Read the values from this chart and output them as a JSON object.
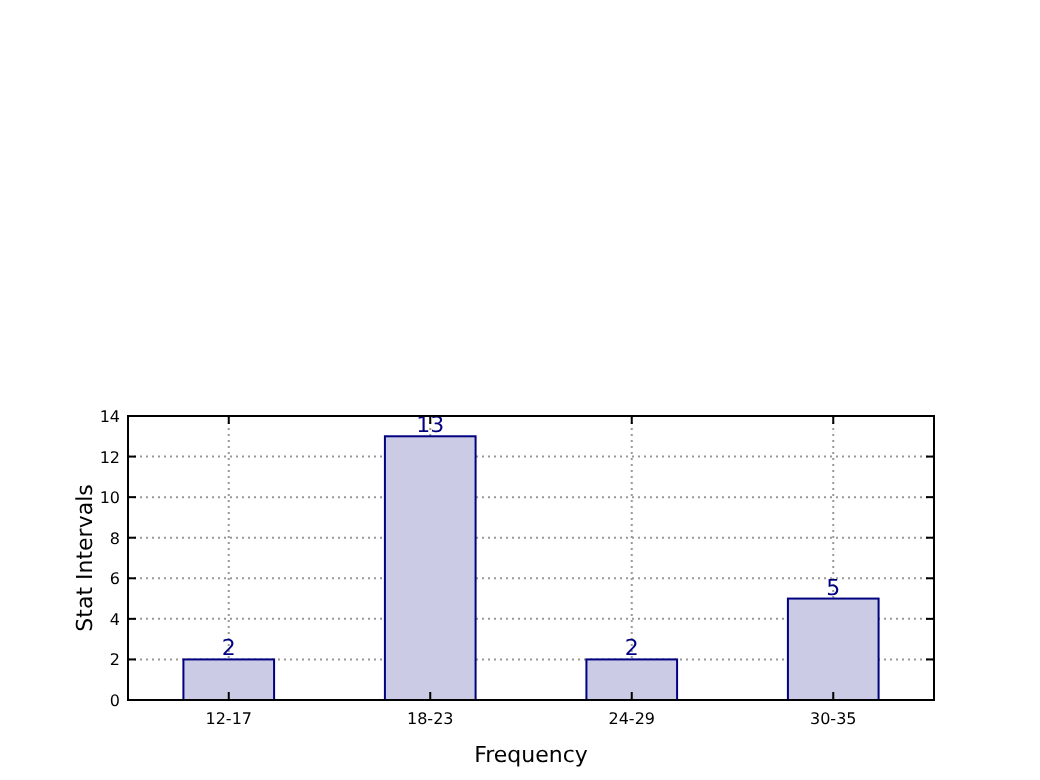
{
  "chart_data": {
    "type": "bar",
    "xlabel": "Frequency",
    "ylabel": "Stat Intervals",
    "categories": [
      "12-17",
      "18-23",
      "24-29",
      "30-35"
    ],
    "values": [
      2,
      13,
      2,
      5
    ],
    "color": "#cbcbe5",
    "ylim": [
      0,
      14
    ],
    "yticks": [
      0,
      2,
      4,
      6,
      8,
      10,
      12,
      14
    ],
    "grid": true,
    "data_labels": true
  }
}
